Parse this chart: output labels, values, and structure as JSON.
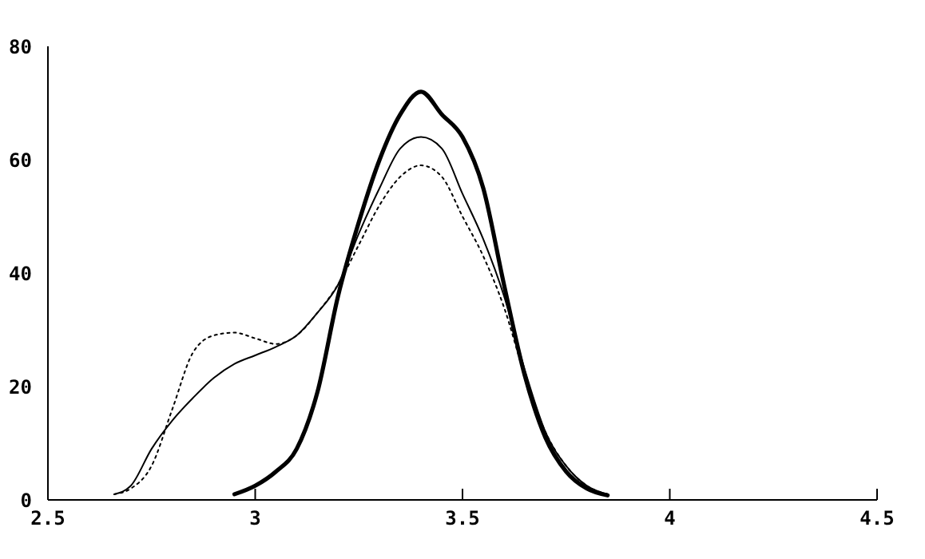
{
  "chart_data": {
    "type": "line",
    "xlim": [
      2.5,
      4.5
    ],
    "xticks": [
      2.5,
      3,
      3.5,
      4,
      4.5
    ],
    "ylim": [
      0,
      80
    ],
    "yticks": [
      0,
      20,
      40,
      60,
      80
    ],
    "marker": "none",
    "series": [
      {
        "color": "#000000",
        "line_style": "solid",
        "x": [
          2.95,
          3.0,
          3.05,
          3.1,
          3.15,
          3.2,
          3.25,
          3.3,
          3.35,
          3.4,
          3.45,
          3.5,
          3.55,
          3.6,
          3.65,
          3.7,
          3.75,
          3.8,
          3.85
        ],
        "values": [
          1,
          2.5,
          5,
          9,
          19,
          36,
          49,
          60,
          68,
          72,
          68,
          64,
          55,
          38,
          22,
          11,
          5,
          2,
          0.8
        ]
      },
      {
        "color": "#000000",
        "line_style": "solid",
        "x": [
          2.66,
          2.7,
          2.75,
          2.8,
          2.85,
          2.9,
          2.95,
          3.0,
          3.05,
          3.1,
          3.15,
          3.2,
          3.25,
          3.3,
          3.35,
          3.4,
          3.45,
          3.5,
          3.55,
          3.6,
          3.65,
          3.7,
          3.75,
          3.8,
          3.85
        ],
        "values": [
          1,
          2.5,
          9,
          14,
          18,
          21.5,
          24,
          25.5,
          27,
          29,
          33,
          38,
          47,
          55,
          62,
          64,
          62,
          54,
          46,
          36,
          23,
          12,
          6,
          2.5,
          1
        ]
      },
      {
        "color": "#000000",
        "line_style": "dotted",
        "x": [
          2.66,
          2.7,
          2.75,
          2.8,
          2.85,
          2.9,
          2.95,
          3.0,
          3.05,
          3.1,
          3.15,
          3.2,
          3.25,
          3.3,
          3.35,
          3.4,
          3.45,
          3.5,
          3.55,
          3.6,
          3.65,
          3.7,
          3.75,
          3.8,
          3.85
        ],
        "values": [
          1,
          2,
          6,
          16,
          26,
          29,
          29.5,
          28.5,
          27.5,
          29,
          33,
          38,
          45,
          52,
          57,
          59,
          57,
          50,
          43,
          34,
          22,
          12,
          6,
          2.5,
          1
        ]
      }
    ]
  }
}
